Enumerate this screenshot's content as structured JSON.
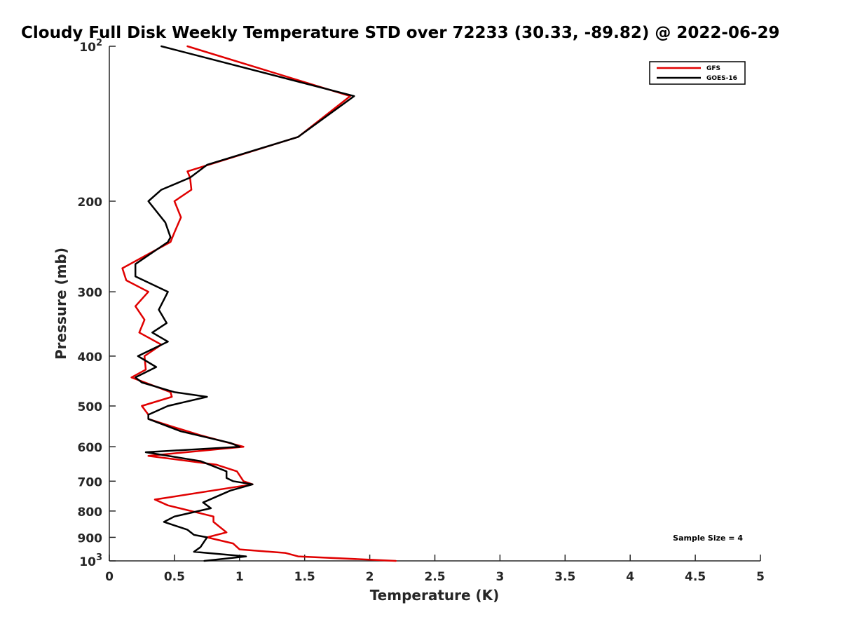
{
  "chart_data": {
    "type": "line",
    "title": "Cloudy Full Disk Weekly Temperature STD over 72233 (30.33, -89.82) @ 2022-06-29",
    "xlabel": "Temperature (K)",
    "ylabel": "Pressure (mb)",
    "xlim": [
      0,
      5
    ],
    "ylim": [
      100,
      1000
    ],
    "y_scale": "log",
    "y_reversed": true,
    "xticks": [
      0,
      0.5,
      1,
      1.5,
      2,
      2.5,
      3,
      3.5,
      4,
      4.5,
      5
    ],
    "xtick_labels": [
      "0",
      "0.5",
      "1",
      "1.5",
      "2",
      "2.5",
      "3",
      "3.5",
      "4",
      "4.5",
      "5"
    ],
    "yticks": [
      100,
      200,
      300,
      400,
      500,
      600,
      700,
      800,
      900,
      1000
    ],
    "ytick_labels": [
      {
        "base": "10",
        "exp": "2"
      },
      {
        "base": "200",
        "exp": ""
      },
      {
        "base": "300",
        "exp": ""
      },
      {
        "base": "400",
        "exp": ""
      },
      {
        "base": "500",
        "exp": ""
      },
      {
        "base": "600",
        "exp": ""
      },
      {
        "base": "700",
        "exp": ""
      },
      {
        "base": "800",
        "exp": ""
      },
      {
        "base": "900",
        "exp": ""
      },
      {
        "base": "10",
        "exp": "3"
      }
    ],
    "legend_position": "top-right",
    "annotation": "Sample Size = 4",
    "series": [
      {
        "name": "GFS",
        "color": "#e00000",
        "points": [
          [
            0.6,
            100
          ],
          [
            1.85,
            125
          ],
          [
            1.45,
            150
          ],
          [
            0.6,
            175
          ],
          [
            0.62,
            180
          ],
          [
            0.63,
            190
          ],
          [
            0.5,
            200
          ],
          [
            0.55,
            215
          ],
          [
            0.5,
            230
          ],
          [
            0.47,
            240
          ],
          [
            0.1,
            270
          ],
          [
            0.13,
            285
          ],
          [
            0.3,
            300
          ],
          [
            0.2,
            320
          ],
          [
            0.27,
            340
          ],
          [
            0.23,
            360
          ],
          [
            0.4,
            380
          ],
          [
            0.27,
            400
          ],
          [
            0.28,
            425
          ],
          [
            0.17,
            440
          ],
          [
            0.47,
            470
          ],
          [
            0.48,
            480
          ],
          [
            0.25,
            500
          ],
          [
            0.3,
            520
          ],
          [
            0.3,
            530
          ],
          [
            0.5,
            550
          ],
          [
            0.7,
            570
          ],
          [
            1.03,
            600
          ],
          [
            0.3,
            625
          ],
          [
            0.82,
            650
          ],
          [
            0.98,
            670
          ],
          [
            1.03,
            700
          ],
          [
            1.1,
            710
          ],
          [
            0.35,
            760
          ],
          [
            0.45,
            780
          ],
          [
            0.8,
            820
          ],
          [
            0.8,
            840
          ],
          [
            0.9,
            880
          ],
          [
            0.75,
            900
          ],
          [
            0.95,
            925
          ],
          [
            1.0,
            950
          ],
          [
            1.35,
            965
          ],
          [
            1.45,
            980
          ],
          [
            2.2,
            1000
          ]
        ]
      },
      {
        "name": "GOES-16",
        "color": "#000000",
        "points": [
          [
            0.4,
            100
          ],
          [
            1.88,
            125
          ],
          [
            1.45,
            150
          ],
          [
            0.75,
            170
          ],
          [
            0.62,
            180
          ],
          [
            0.4,
            190
          ],
          [
            0.3,
            200
          ],
          [
            0.43,
            220
          ],
          [
            0.47,
            235
          ],
          [
            0.45,
            240
          ],
          [
            0.2,
            265
          ],
          [
            0.2,
            280
          ],
          [
            0.45,
            300
          ],
          [
            0.38,
            325
          ],
          [
            0.44,
            345
          ],
          [
            0.33,
            360
          ],
          [
            0.45,
            375
          ],
          [
            0.22,
            400
          ],
          [
            0.36,
            420
          ],
          [
            0.2,
            440
          ],
          [
            0.25,
            450
          ],
          [
            0.5,
            470
          ],
          [
            0.75,
            480
          ],
          [
            0.45,
            500
          ],
          [
            0.3,
            520
          ],
          [
            0.3,
            530
          ],
          [
            0.55,
            560
          ],
          [
            0.93,
            590
          ],
          [
            1.0,
            600
          ],
          [
            0.28,
            615
          ],
          [
            0.7,
            640
          ],
          [
            0.9,
            670
          ],
          [
            0.9,
            690
          ],
          [
            0.95,
            700
          ],
          [
            1.1,
            710
          ],
          [
            0.93,
            730
          ],
          [
            0.72,
            770
          ],
          [
            0.78,
            790
          ],
          [
            0.5,
            820
          ],
          [
            0.42,
            840
          ],
          [
            0.6,
            870
          ],
          [
            0.65,
            890
          ],
          [
            0.75,
            900
          ],
          [
            0.7,
            940
          ],
          [
            0.65,
            960
          ],
          [
            1.05,
            980
          ],
          [
            0.73,
            1000
          ]
        ]
      }
    ]
  }
}
